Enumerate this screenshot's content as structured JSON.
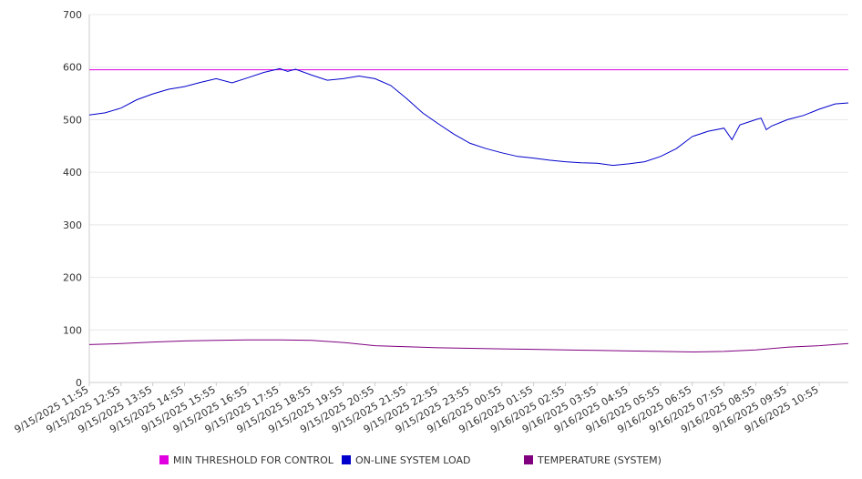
{
  "chart_data": {
    "type": "line",
    "title": "",
    "xlabel": "",
    "ylabel": "",
    "ylim": [
      0,
      700
    ],
    "yticks": [
      0,
      100,
      200,
      300,
      400,
      500,
      600,
      700
    ],
    "grid": true,
    "legend_position": "bottom",
    "x_tick_labels": [
      "9/15/2025 11:55",
      "9/15/2025 12:55",
      "9/15/2025 13:55",
      "9/15/2025 14:55",
      "9/15/2025 15:55",
      "9/15/2025 16:55",
      "9/15/2025 17:55",
      "9/15/2025 18:55",
      "9/15/2025 19:55",
      "9/15/2025 20:55",
      "9/15/2025 21:55",
      "9/15/2025 22:55",
      "9/15/2025 23:55",
      "9/16/2025 00:55",
      "9/16/2025 01:55",
      "9/16/2025 02:55",
      "9/16/2025 03:55",
      "9/16/2025 04:55",
      "9/16/2025 05:55",
      "9/16/2025 06:55",
      "9/16/2025 07:55",
      "9/16/2025 08:55",
      "9/16/2025 09:55",
      "9/16/2025 10:55"
    ],
    "series": [
      {
        "name": "MIN THRESHOLD FOR CONTROL",
        "color": "#e000e0",
        "points": [
          [
            "9/15/2025 11:55",
            595
          ],
          [
            "9/16/2025 11:50",
            595
          ]
        ]
      },
      {
        "name": "ON-LINE SYSTEM LOAD",
        "color": "#0000cc",
        "points": [
          [
            "9/15/2025 11:55",
            509
          ],
          [
            "9/15/2025 12:25",
            513
          ],
          [
            "9/15/2025 12:55",
            522
          ],
          [
            "9/15/2025 13:25",
            538
          ],
          [
            "9/15/2025 13:55",
            549
          ],
          [
            "9/15/2025 14:25",
            558
          ],
          [
            "9/15/2025 14:55",
            563
          ],
          [
            "9/15/2025 15:25",
            571
          ],
          [
            "9/15/2025 15:55",
            578
          ],
          [
            "9/15/2025 16:25",
            570
          ],
          [
            "9/15/2025 16:55",
            580
          ],
          [
            "9/15/2025 17:25",
            590
          ],
          [
            "9/15/2025 17:55",
            597
          ],
          [
            "9/15/2025 18:10",
            592
          ],
          [
            "9/15/2025 18:25",
            596
          ],
          [
            "9/15/2025 18:55",
            585
          ],
          [
            "9/15/2025 19:25",
            575
          ],
          [
            "9/15/2025 19:55",
            578
          ],
          [
            "9/15/2025 20:25",
            583
          ],
          [
            "9/15/2025 20:55",
            578
          ],
          [
            "9/15/2025 21:25",
            565
          ],
          [
            "9/15/2025 21:55",
            540
          ],
          [
            "9/15/2025 22:25",
            513
          ],
          [
            "9/15/2025 22:55",
            492
          ],
          [
            "9/15/2025 23:25",
            472
          ],
          [
            "9/15/2025 23:55",
            455
          ],
          [
            "9/16/2025 00:25",
            445
          ],
          [
            "9/16/2025 00:55",
            437
          ],
          [
            "9/16/2025 01:25",
            430
          ],
          [
            "9/16/2025 01:55",
            427
          ],
          [
            "9/16/2025 02:25",
            423
          ],
          [
            "9/16/2025 02:55",
            420
          ],
          [
            "9/16/2025 03:25",
            418
          ],
          [
            "9/16/2025 03:55",
            417
          ],
          [
            "9/16/2025 04:25",
            413
          ],
          [
            "9/16/2025 04:55",
            416
          ],
          [
            "9/16/2025 05:25",
            420
          ],
          [
            "9/16/2025 05:55",
            430
          ],
          [
            "9/16/2025 06:25",
            445
          ],
          [
            "9/16/2025 06:55",
            468
          ],
          [
            "9/16/2025 07:25",
            478
          ],
          [
            "9/16/2025 07:55",
            484
          ],
          [
            "9/16/2025 08:10",
            462
          ],
          [
            "9/16/2025 08:25",
            490
          ],
          [
            "9/16/2025 08:55",
            500
          ],
          [
            "9/16/2025 09:05",
            503
          ],
          [
            "9/16/2025 09:15",
            481
          ],
          [
            "9/16/2025 09:25",
            488
          ],
          [
            "9/16/2025 09:55",
            500
          ],
          [
            "9/16/2025 10:25",
            508
          ],
          [
            "9/16/2025 10:55",
            520
          ],
          [
            "9/16/2025 11:25",
            530
          ],
          [
            "9/16/2025 11:50",
            532
          ]
        ]
      },
      {
        "name": "TEMPERATURE (SYSTEM)",
        "color": "#800080",
        "points": [
          [
            "9/15/2025 11:55",
            72
          ],
          [
            "9/15/2025 12:55",
            74
          ],
          [
            "9/15/2025 13:55",
            77
          ],
          [
            "9/15/2025 14:55",
            79
          ],
          [
            "9/15/2025 15:55",
            80
          ],
          [
            "9/15/2025 16:55",
            81
          ],
          [
            "9/15/2025 17:55",
            81
          ],
          [
            "9/15/2025 18:55",
            80
          ],
          [
            "9/15/2025 19:55",
            76
          ],
          [
            "9/15/2025 20:55",
            70
          ],
          [
            "9/15/2025 21:55",
            68
          ],
          [
            "9/15/2025 22:55",
            66
          ],
          [
            "9/15/2025 23:55",
            65
          ],
          [
            "9/16/2025 00:55",
            64
          ],
          [
            "9/16/2025 01:55",
            63
          ],
          [
            "9/16/2025 02:55",
            62
          ],
          [
            "9/16/2025 03:55",
            61
          ],
          [
            "9/16/2025 04:55",
            60
          ],
          [
            "9/16/2025 05:55",
            59
          ],
          [
            "9/16/2025 06:55",
            58
          ],
          [
            "9/16/2025 07:55",
            59
          ],
          [
            "9/16/2025 08:55",
            62
          ],
          [
            "9/16/2025 09:55",
            67
          ],
          [
            "9/16/2025 10:55",
            70
          ],
          [
            "9/16/2025 11:50",
            74
          ]
        ]
      }
    ]
  }
}
